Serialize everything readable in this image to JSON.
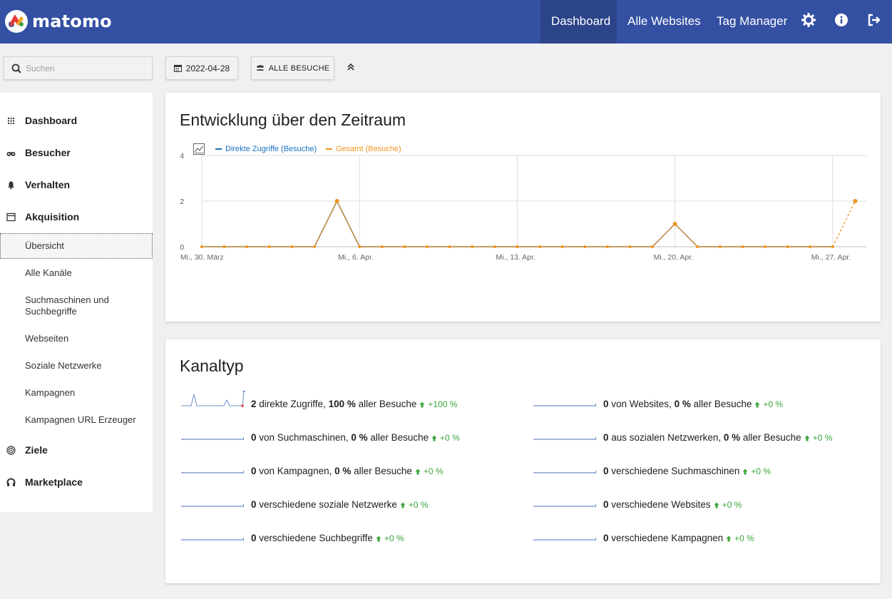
{
  "header": {
    "logo_text": "matomo",
    "nav": [
      "Dashboard",
      "Alle Websites",
      "Tag Manager"
    ],
    "icons": [
      "gear-icon",
      "info-icon",
      "logout-icon"
    ],
    "colors": {
      "bar": "#3450a3",
      "active": "#2c4489"
    }
  },
  "controls": {
    "search_placeholder": "Suchen",
    "date": "2022-04-28",
    "segment": "ALLE BESUCHE"
  },
  "sidebar": {
    "items": [
      {
        "label": "Dashboard",
        "icon": "grid-icon"
      },
      {
        "label": "Besucher",
        "icon": "binoculars-icon"
      },
      {
        "label": "Verhalten",
        "icon": "bell-icon"
      },
      {
        "label": "Akquisition",
        "icon": "window-icon"
      }
    ],
    "sub_items": [
      "Übersicht",
      "Alle Kanäle",
      "Suchmaschinen und Suchbegriffe",
      "Webseiten",
      "Soziale Netzwerke",
      "Kampagnen",
      "Kampagnen URL Erzeuger"
    ],
    "bottom_items": [
      {
        "label": "Ziele",
        "icon": "target-icon"
      },
      {
        "label": "Marketplace",
        "icon": "headset-icon"
      }
    ]
  },
  "evolution": {
    "title": "Entwicklung über den Zeitraum"
  },
  "chart_data": {
    "type": "line",
    "title": "Entwicklung über den Zeitraum",
    "series": [
      {
        "name": "Direkte Zugriffe (Besuche)",
        "color": "#1a73c0"
      },
      {
        "name": "Gesamt (Besuche)",
        "color": "#f0961f"
      }
    ],
    "values": [
      0,
      0,
      0,
      0,
      0,
      0,
      2,
      0,
      0,
      0,
      0,
      0,
      0,
      0,
      0,
      0,
      0,
      0,
      0,
      0,
      0,
      1,
      0,
      0,
      0,
      0,
      0,
      0,
      0,
      2
    ],
    "x_tick_labels": [
      "Mi., 30. März",
      "Mi., 6. Apr.",
      "Mi., 13. Apr.",
      "Mi., 20. Apr.",
      "Mi., 27. Apr."
    ],
    "y_ticks": [
      0,
      2,
      4
    ],
    "ylim": [
      0,
      4
    ],
    "grid": true,
    "legend": "top-left",
    "last_segment_dashed": true
  },
  "channel": {
    "title": "Kanaltyp",
    "rows": [
      {
        "value": "2",
        "text": " direkte Zugriffe, ",
        "pct": "100 %",
        "suffix": " aller Besuche",
        "trend": "+100 %"
      },
      {
        "value": "0",
        "text": " von Websites, ",
        "pct": "0 %",
        "suffix": " aller Besuche",
        "trend": "+0 %"
      },
      {
        "value": "0",
        "text": " von Suchmaschinen, ",
        "pct": "0 %",
        "suffix": " aller Besuche",
        "trend": "+0 %"
      },
      {
        "value": "0",
        "text": " aus sozialen Netzwerken, ",
        "pct": "0 %",
        "suffix": " aller Besuche",
        "trend": "+0 %"
      },
      {
        "value": "0",
        "text": " von Kampagnen, ",
        "pct": "0 %",
        "suffix": " aller Besuche",
        "trend": "+0 %"
      },
      {
        "value": "0",
        "text": " verschiedene Suchmaschinen",
        "pct": "",
        "suffix": "",
        "trend": "+0 %"
      },
      {
        "value": "0",
        "text": " verschiedene soziale Netzwerke",
        "pct": "",
        "suffix": "",
        "trend": "+0 %"
      },
      {
        "value": "0",
        "text": " verschiedene Websites",
        "pct": "",
        "suffix": "",
        "trend": "+0 %"
      },
      {
        "value": "0",
        "text": " verschiedene Suchbegriffe",
        "pct": "",
        "suffix": "",
        "trend": "+0 %"
      },
      {
        "value": "0",
        "text": " verschiedene Kampagnen",
        "pct": "",
        "suffix": "",
        "trend": "+0 %"
      }
    ]
  }
}
